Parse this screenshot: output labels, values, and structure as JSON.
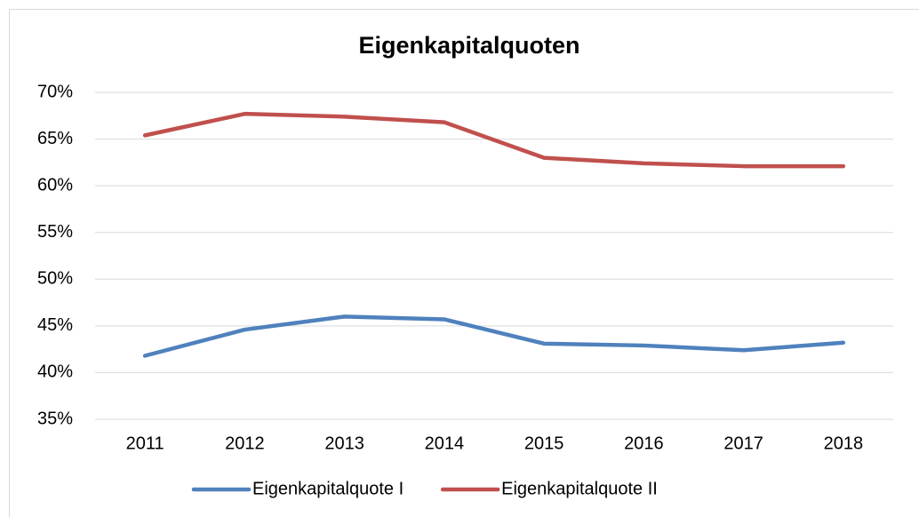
{
  "chart_data": {
    "type": "line",
    "title": "Eigenkapitalquoten",
    "categories": [
      "2011",
      "2012",
      "2013",
      "2014",
      "2015",
      "2016",
      "2017",
      "2018"
    ],
    "series": [
      {
        "name": "Eigenkapitalquote I",
        "color": "#4f81bd",
        "values": [
          41.8,
          44.6,
          46.0,
          45.7,
          43.1,
          42.9,
          42.4,
          43.2
        ]
      },
      {
        "name": "Eigenkapitalquote II",
        "color": "#c0504d",
        "values": [
          65.4,
          67.7,
          67.4,
          66.8,
          63.0,
          62.4,
          62.1,
          62.1
        ]
      }
    ],
    "ylim": [
      35,
      70
    ],
    "yticks": [
      {
        "value": 35,
        "label": "35%"
      },
      {
        "value": 40,
        "label": "40%"
      },
      {
        "value": 45,
        "label": "45%"
      },
      {
        "value": 50,
        "label": "50%"
      },
      {
        "value": 55,
        "label": "55%"
      },
      {
        "value": 60,
        "label": "60%"
      },
      {
        "value": 65,
        "label": "65%"
      },
      {
        "value": 70,
        "label": "70%"
      }
    ],
    "grid": true,
    "legend": "bottom"
  }
}
